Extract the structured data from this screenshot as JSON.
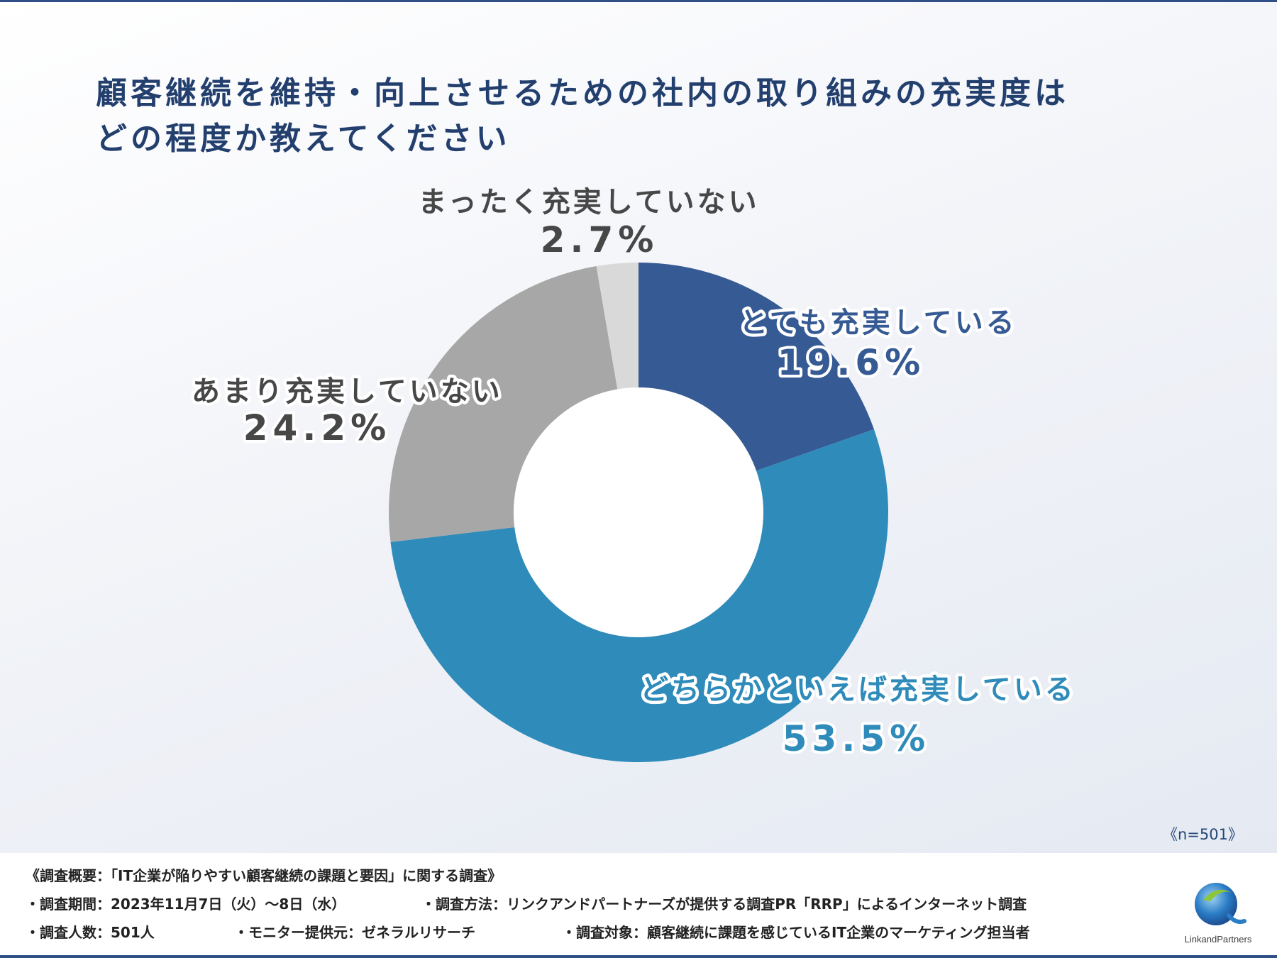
{
  "title": {
    "line1": "顧客継続を維持・向上させるための社内の取り組みの充実度は",
    "line2": "どの程度か教えてください"
  },
  "chart_data": {
    "type": "donut",
    "series": [
      {
        "name": "とても充実している",
        "value": 19.6,
        "label": "19.6%",
        "color": "#365a93",
        "text_color": "#365a93"
      },
      {
        "name": "どちらかといえば充実している",
        "value": 53.5,
        "label": "53.5%",
        "color": "#2e8bba",
        "text_color": "#2e8bba"
      },
      {
        "name": "あまり充実していない",
        "value": 24.2,
        "label": "24.2%",
        "color": "#a7a7a7",
        "text_color": "#474747"
      },
      {
        "name": "まったく充実していない",
        "value": 2.7,
        "label": "2.7%",
        "color": "#d9d9d9",
        "text_color": "#474747"
      }
    ]
  },
  "sample_size": "《n=501》",
  "footer": {
    "summary": "《調査概要：「IT企業が陥りやすい顧客継続の課題と要因」に関する調査》",
    "period": "・調査期間：2023年11月7日（火）〜8日（水）",
    "method": "・調査方法：リンクアンドパートナーズが提供する調査PR「RRP」によるインターネット調査",
    "respondents": "・調査人数：501人",
    "provider": "・モニター提供元：ゼネラルリサーチ",
    "target": "・調査対象：顧客継続に課題を感じているIT企業のマーケティング担当者"
  },
  "logo": {
    "text": "LinkandPartners"
  }
}
